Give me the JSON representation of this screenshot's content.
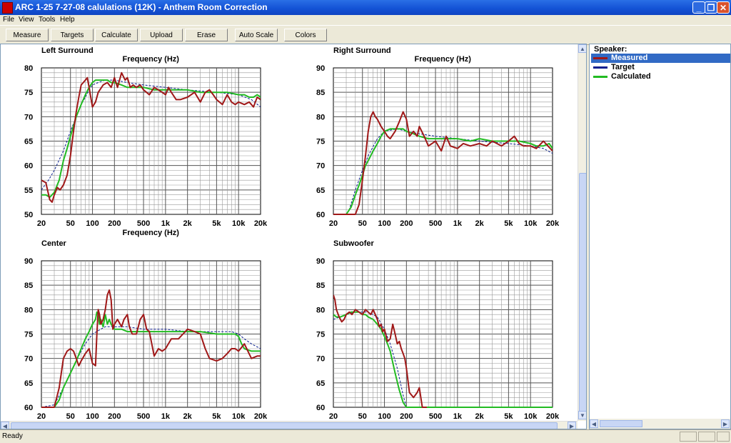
{
  "window": {
    "title": "ARC 1-25 7-27-08 calulations (12K) - Anthem Room Correction"
  },
  "menu": [
    "File",
    "View",
    "Tools",
    "Help"
  ],
  "toolbar": [
    "Measure",
    "Targets",
    "Calculate",
    "Upload",
    "Erase",
    "Auto Scale",
    "Colors"
  ],
  "legend": {
    "title": "Speaker:",
    "items": [
      {
        "label": "Measured",
        "color": "#a01818",
        "selected": true
      },
      {
        "label": "Target",
        "color": "#0a1f8f",
        "selected": false
      },
      {
        "label": "Calculated",
        "color": "#22bb22",
        "selected": false
      }
    ]
  },
  "status": "Ready",
  "chart_data": [
    {
      "type": "line",
      "title": "Left Surround",
      "xlabel": "Frequency (Hz)",
      "xscale": "log",
      "xlim": [
        20,
        20000
      ],
      "ylim": [
        50,
        80
      ],
      "xticks": [
        20,
        50,
        100,
        200,
        500,
        1000,
        2000,
        5000,
        10000,
        20000
      ],
      "xtick_labels": [
        "20",
        "50",
        "100",
        "200",
        "500",
        "1k",
        "2k",
        "5k",
        "10k",
        "20k"
      ],
      "yticks": [
        50,
        55,
        60,
        65,
        70,
        75,
        80
      ],
      "series": [
        {
          "name": "Measured",
          "x": [
            20,
            23,
            26,
            28,
            30,
            33,
            36,
            40,
            45,
            50,
            55,
            60,
            65,
            70,
            75,
            80,
            85,
            90,
            100,
            110,
            120,
            140,
            160,
            180,
            200,
            220,
            250,
            280,
            300,
            330,
            360,
            400,
            450,
            500,
            550,
            600,
            700,
            800,
            900,
            1000,
            1100,
            1200,
            1400,
            1600,
            2000,
            2500,
            3000,
            3500,
            4000,
            4500,
            5000,
            6000,
            7000,
            8000,
            9000,
            10000,
            12000,
            14000,
            16000,
            18000,
            20000
          ],
          "y": [
            57,
            56.5,
            53,
            52.5,
            54,
            55.5,
            55,
            56,
            58,
            62,
            67,
            71,
            74,
            76.5,
            77,
            77.5,
            78,
            76,
            72,
            73,
            75,
            76.5,
            77,
            76,
            78,
            76,
            79,
            77.5,
            78,
            76,
            76.5,
            76,
            76.5,
            75.5,
            75,
            74.5,
            76,
            75.5,
            75,
            74.5,
            76,
            75,
            73.5,
            73.5,
            74,
            75,
            73,
            75,
            75.5,
            74.5,
            73.5,
            72.5,
            74.5,
            73,
            72.5,
            73,
            72.5,
            73,
            72,
            74,
            73.5
          ]
        },
        {
          "name": "Target",
          "x": [
            20,
            25,
            30,
            40,
            50,
            60,
            70,
            80,
            90,
            100,
            120,
            150,
            200,
            300,
            500,
            1000,
            2000,
            5000,
            10000,
            15000,
            20000
          ],
          "y": [
            55,
            57,
            59,
            63,
            67,
            70,
            72.5,
            74,
            75.5,
            76.5,
            77,
            77.5,
            77.5,
            77,
            76.5,
            76,
            75.5,
            75,
            74.5,
            73.5,
            72
          ]
        },
        {
          "name": "Calculated",
          "x": [
            20,
            23,
            26,
            30,
            35,
            40,
            45,
            50,
            60,
            70,
            80,
            90,
            100,
            110,
            120,
            140,
            160,
            180,
            200,
            250,
            300,
            400,
            500,
            700,
            1000,
            1500,
            2000,
            3000,
            5000,
            7000,
            10000,
            12000,
            14000,
            16000,
            18000,
            20000
          ],
          "y": [
            54,
            54,
            53.5,
            54.5,
            57,
            61,
            63.5,
            66,
            70,
            72.5,
            74.5,
            76,
            77,
            77.5,
            77.5,
            77.5,
            77.5,
            77,
            77,
            76.5,
            76,
            76,
            76,
            75.5,
            75.5,
            75.5,
            75.5,
            75,
            75,
            75,
            74.5,
            74.5,
            74,
            74,
            74.5,
            74
          ]
        }
      ]
    },
    {
      "type": "line",
      "title": "Right Surround",
      "xlabel": "Frequency (Hz)",
      "xscale": "log",
      "xlim": [
        20,
        20000
      ],
      "ylim": [
        60,
        90
      ],
      "xticks": [
        20,
        50,
        100,
        200,
        500,
        1000,
        2000,
        5000,
        10000,
        20000
      ],
      "xtick_labels": [
        "20",
        "50",
        "100",
        "200",
        "500",
        "1k",
        "2k",
        "5k",
        "10k",
        "20k"
      ],
      "yticks": [
        60,
        65,
        70,
        75,
        80,
        85,
        90
      ],
      "series": [
        {
          "name": "Measured",
          "x": [
            20,
            30,
            36,
            40,
            45,
            50,
            55,
            60,
            65,
            70,
            75,
            80,
            90,
            100,
            110,
            120,
            140,
            160,
            180,
            200,
            220,
            250,
            280,
            300,
            350,
            400,
            500,
            600,
            700,
            800,
            1000,
            1200,
            1500,
            2000,
            2500,
            3000,
            4000,
            5000,
            6000,
            7000,
            8000,
            10000,
            12000,
            15000,
            20000
          ],
          "y": [
            60,
            60,
            60,
            60,
            62,
            67,
            72,
            77,
            80,
            81,
            80,
            79.5,
            78,
            77,
            76,
            75.5,
            77,
            79,
            81,
            79.5,
            76,
            77,
            76,
            78,
            76,
            74,
            75,
            73,
            76,
            74,
            73.5,
            74.5,
            74,
            74.5,
            74,
            75,
            74,
            75,
            76,
            74.5,
            74,
            74,
            73.5,
            75,
            73
          ]
        },
        {
          "name": "Target",
          "x": [
            20,
            30,
            33,
            40,
            50,
            60,
            80,
            100,
            150,
            200,
            300,
            500,
            1000,
            2000,
            5000,
            10000,
            15000,
            20000
          ],
          "y": [
            60,
            60,
            61,
            65,
            69,
            72,
            75.5,
            77,
            77.5,
            77,
            76.5,
            76,
            75.5,
            75,
            74.5,
            74,
            73.5,
            72.5
          ]
        },
        {
          "name": "Calculated",
          "x": [
            20,
            30,
            35,
            40,
            45,
            50,
            55,
            60,
            70,
            80,
            90,
            100,
            120,
            150,
            180,
            200,
            250,
            300,
            400,
            500,
            700,
            1000,
            1500,
            2000,
            3000,
            5000,
            7000,
            10000,
            12000,
            15000,
            18000,
            20000
          ],
          "y": [
            60,
            60,
            61.5,
            64,
            66,
            68,
            70,
            71,
            73,
            74.5,
            76,
            77,
            77.5,
            77.5,
            77.5,
            77,
            76.5,
            76,
            75.5,
            75.5,
            75.5,
            75.5,
            75,
            75.5,
            75,
            75,
            75,
            74.5,
            74,
            74,
            74.5,
            73.5
          ]
        }
      ]
    },
    {
      "type": "line",
      "title": "Center",
      "xlabel": "Frequency (Hz)",
      "xscale": "log",
      "xlim": [
        20,
        20000
      ],
      "ylim": [
        60,
        90
      ],
      "xticks": [
        20,
        50,
        100,
        200,
        500,
        1000,
        2000,
        5000,
        10000,
        20000
      ],
      "xtick_labels": [
        "20",
        "50",
        "100",
        "200",
        "500",
        "1k",
        "2k",
        "5k",
        "10k",
        "20k"
      ],
      "yticks": [
        60,
        65,
        70,
        75,
        80,
        85,
        90
      ],
      "series": [
        {
          "name": "Measured",
          "x": [
            20,
            30,
            35,
            40,
            45,
            50,
            55,
            60,
            65,
            70,
            80,
            90,
            100,
            110,
            115,
            120,
            125,
            130,
            140,
            150,
            160,
            170,
            180,
            190,
            200,
            220,
            250,
            270,
            300,
            320,
            350,
            400,
            450,
            500,
            550,
            600,
            700,
            800,
            900,
            1000,
            1200,
            1500,
            2000,
            2500,
            3000,
            3500,
            4000,
            5000,
            6000,
            7000,
            8000,
            9000,
            10000,
            12000,
            15000,
            18000,
            20000
          ],
          "y": [
            60,
            60,
            64,
            70,
            71.5,
            72,
            71.5,
            70,
            68.5,
            69.5,
            71,
            72,
            69,
            68.5,
            75,
            80,
            79,
            77,
            78,
            80,
            83,
            84,
            82,
            76,
            77,
            78,
            76.5,
            78,
            79,
            76.5,
            75,
            75,
            78,
            79,
            76,
            75.5,
            70.5,
            72,
            71.5,
            72,
            74,
            74,
            76,
            75.5,
            75,
            72,
            70,
            69.5,
            70,
            71,
            72,
            72,
            71.5,
            73,
            70,
            70.5,
            70.5
          ]
        },
        {
          "name": "Target",
          "x": [
            20,
            30,
            40,
            50,
            60,
            70,
            80,
            100,
            130,
            150,
            200,
            300,
            500,
            1000,
            2000,
            5000,
            8000,
            10000,
            12000,
            15000,
            20000
          ],
          "y": [
            60,
            60.5,
            64,
            67,
            69.5,
            71.5,
            73,
            75,
            76,
            76.5,
            76.5,
            76.5,
            76,
            76,
            75.5,
            75.5,
            75.5,
            75,
            74,
            73,
            72
          ]
        },
        {
          "name": "Calculated",
          "x": [
            20,
            30,
            35,
            40,
            50,
            60,
            70,
            80,
            90,
            100,
            110,
            115,
            120,
            125,
            130,
            140,
            150,
            160,
            170,
            180,
            200,
            250,
            300,
            400,
            500,
            700,
            1000,
            2000,
            3000,
            5000,
            7000,
            9000,
            10000,
            11000,
            12000,
            15000,
            20000
          ],
          "y": [
            60,
            60,
            61.5,
            64,
            67,
            69.5,
            72,
            74,
            75.5,
            77,
            78,
            79.5,
            79,
            77,
            78,
            76.5,
            79,
            77,
            78,
            77,
            76,
            76,
            75.5,
            75.5,
            75.5,
            75.5,
            75.5,
            75.5,
            75.5,
            75,
            75,
            75,
            74.5,
            73,
            72,
            71.5,
            71.5
          ]
        }
      ]
    },
    {
      "type": "line",
      "title": "Subwoofer",
      "xlabel": "",
      "xscale": "log",
      "xlim": [
        20,
        20000
      ],
      "ylim": [
        60,
        90
      ],
      "xticks": [
        20,
        50,
        100,
        200,
        500,
        1000,
        2000,
        5000,
        10000,
        20000
      ],
      "xtick_labels": [
        "20",
        "50",
        "100",
        "200",
        "500",
        "1k",
        "2k",
        "5k",
        "10k",
        "20k"
      ],
      "yticks": [
        60,
        65,
        70,
        75,
        80,
        85,
        90
      ],
      "series": [
        {
          "name": "Measured",
          "x": [
            20,
            21,
            22,
            24,
            26,
            28,
            30,
            33,
            36,
            40,
            45,
            50,
            55,
            60,
            65,
            70,
            75,
            80,
            85,
            90,
            95,
            100,
            110,
            120,
            130,
            140,
            150,
            160,
            170,
            180,
            190,
            200,
            220,
            250,
            280,
            300,
            330,
            360,
            380
          ],
          "y": [
            83,
            82,
            80,
            78.5,
            77.5,
            78,
            79,
            79.5,
            79,
            80,
            79.5,
            79,
            80,
            79.5,
            79,
            80,
            79,
            78,
            76.5,
            77,
            75.5,
            76,
            73.5,
            74,
            77,
            75,
            73,
            73.5,
            72,
            71,
            70,
            68,
            63,
            62,
            63,
            64,
            60,
            60,
            60
          ]
        },
        {
          "name": "Target",
          "x": [
            20,
            30,
            40,
            60,
            80,
            100,
            120,
            150,
            180,
            200
          ],
          "y": [
            78,
            79,
            79.5,
            79.5,
            78.5,
            76,
            73,
            68,
            62.5,
            60
          ]
        },
        {
          "name": "Calculated",
          "x": [
            20,
            22,
            25,
            30,
            35,
            40,
            45,
            50,
            55,
            60,
            70,
            80,
            90,
            100,
            110,
            120,
            140,
            160,
            180,
            200,
            20000
          ],
          "y": [
            79,
            78.5,
            78.5,
            79,
            79.5,
            79.5,
            79.5,
            79,
            79,
            78.5,
            78,
            77,
            76,
            74.5,
            73,
            71.5,
            67,
            63.5,
            61,
            60,
            60
          ]
        }
      ]
    }
  ]
}
